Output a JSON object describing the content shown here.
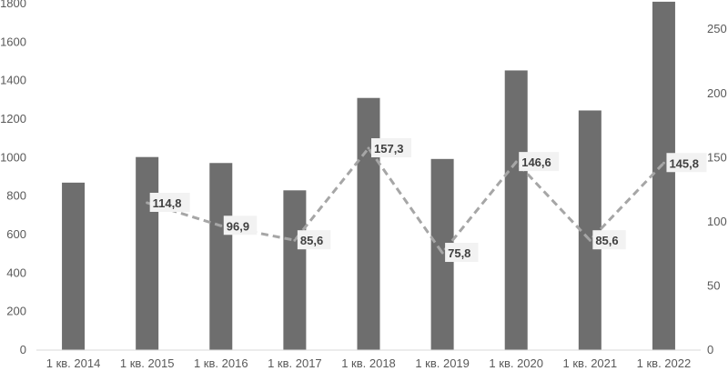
{
  "chart_data": {
    "type": "bar",
    "categories": [
      "1 кв. 2014",
      "1 кв. 2015",
      "1 кв. 2016",
      "1 кв. 2017",
      "1 кв. 2018",
      "1 кв. 2019",
      "1 кв. 2020",
      "1 кв. 2021",
      "1 кв. 2022"
    ],
    "series": [
      {
        "type": "bar",
        "axis": "left",
        "values": [
          870,
          1003,
          972,
          830,
          1310,
          993,
          1453,
          1245,
          1810
        ],
        "color": "#6e6e6e"
      },
      {
        "type": "line",
        "axis": "right",
        "style": "dashed",
        "values": [
          null,
          114.8,
          96.9,
          85.6,
          157.3,
          75.8,
          146.6,
          85.6,
          145.8
        ],
        "labels": [
          "",
          "114,8",
          "96,9",
          "85,6",
          "157,3",
          "75,8",
          "146,6",
          "85,6",
          "145,8"
        ],
        "color": "#a6a6a6"
      }
    ],
    "y_left": {
      "range": [
        0,
        1800
      ],
      "ticks": [
        "0",
        "200",
        "400",
        "600",
        "800",
        "1000",
        "1200",
        "1400",
        "1600",
        "1800"
      ]
    },
    "y_right": {
      "range": [
        0,
        270
      ],
      "ticks": [
        "0",
        "50",
        "100",
        "150",
        "200",
        "250"
      ]
    },
    "title": "",
    "xlabel": "",
    "ylabel": "",
    "grid": false,
    "legend": "none"
  }
}
